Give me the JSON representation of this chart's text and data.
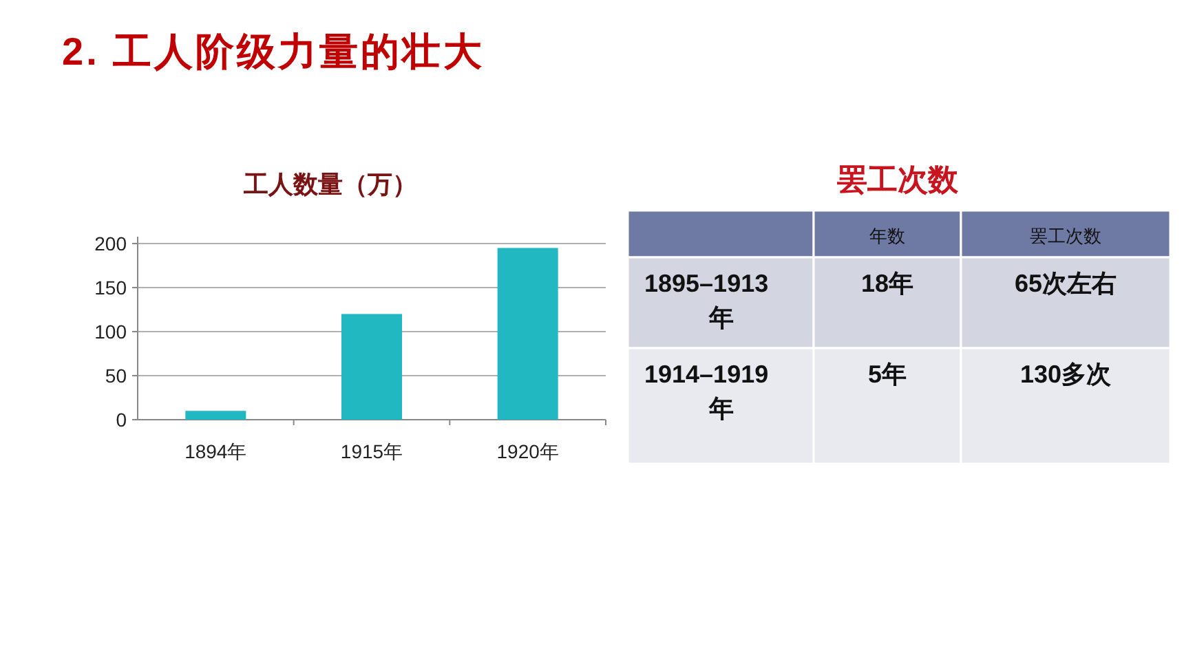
{
  "chart_data": [
    {
      "type": "other",
      "title": "2. 工人阶级力量的壮大"
    },
    {
      "type": "bar",
      "title": "工人数量（万）",
      "categories": [
        "1894年",
        "1915年",
        "1920年"
      ],
      "values": [
        10,
        120,
        195
      ],
      "color": "#22b8c2",
      "ylim": [
        0,
        200
      ],
      "yticks": [
        0,
        50,
        100,
        150,
        200
      ],
      "grid": "y"
    },
    {
      "type": "other",
      "title": "罢工次数",
      "annotations": [
        "年数",
        "罢工次数",
        "1895–1913年",
        "18年",
        "65次左右",
        "1914–1919年",
        "5年",
        "130多次"
      ]
    }
  ]
}
